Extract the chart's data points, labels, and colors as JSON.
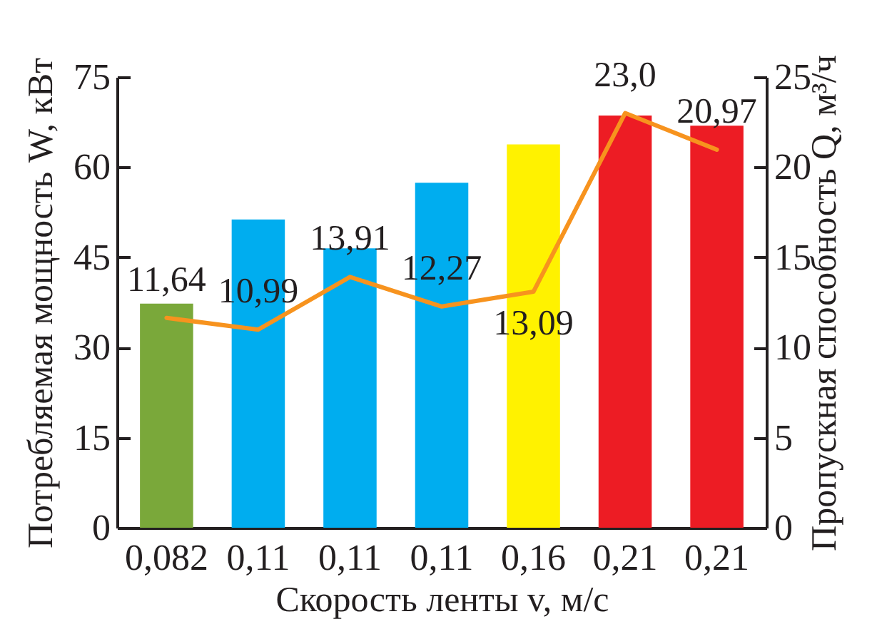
{
  "chart_data": {
    "type": "bar",
    "categories": [
      "0,082",
      "0,11",
      "0,11",
      "0,11",
      "0,16",
      "0,21",
      "0,21"
    ],
    "xlabel": "Скорость ленты v, м/с",
    "ylabel": "Потребляемая мощность W, кВт",
    "y2label": "Пропускная способность Q, м³/ч",
    "series": [
      {
        "colors": [
          "#7aa83a",
          "#00adef",
          "#00adef",
          "#00adef",
          "#fff200",
          "#ed1c24",
          "#ed1c24"
        ],
        "values": [
          37.3,
          51.3,
          46.5,
          57.4,
          63.8,
          68.6,
          66.9
        ]
      },
      {
        "type": "line",
        "axis": "y2",
        "color": "#f7931e",
        "values": [
          11.64,
          10.99,
          13.91,
          12.27,
          13.09,
          23.0,
          20.97
        ],
        "value_labels": [
          "11,64",
          "10,99",
          "13,91",
          "12,27",
          "13,09",
          "23,0",
          "20,97"
        ]
      }
    ],
    "ylim": [
      0,
      75
    ],
    "yticks": [
      0,
      15,
      30,
      45,
      60,
      75
    ],
    "y2lim": [
      0,
      25
    ],
    "y2ticks": [
      0,
      5,
      10,
      15,
      20,
      25
    ]
  }
}
